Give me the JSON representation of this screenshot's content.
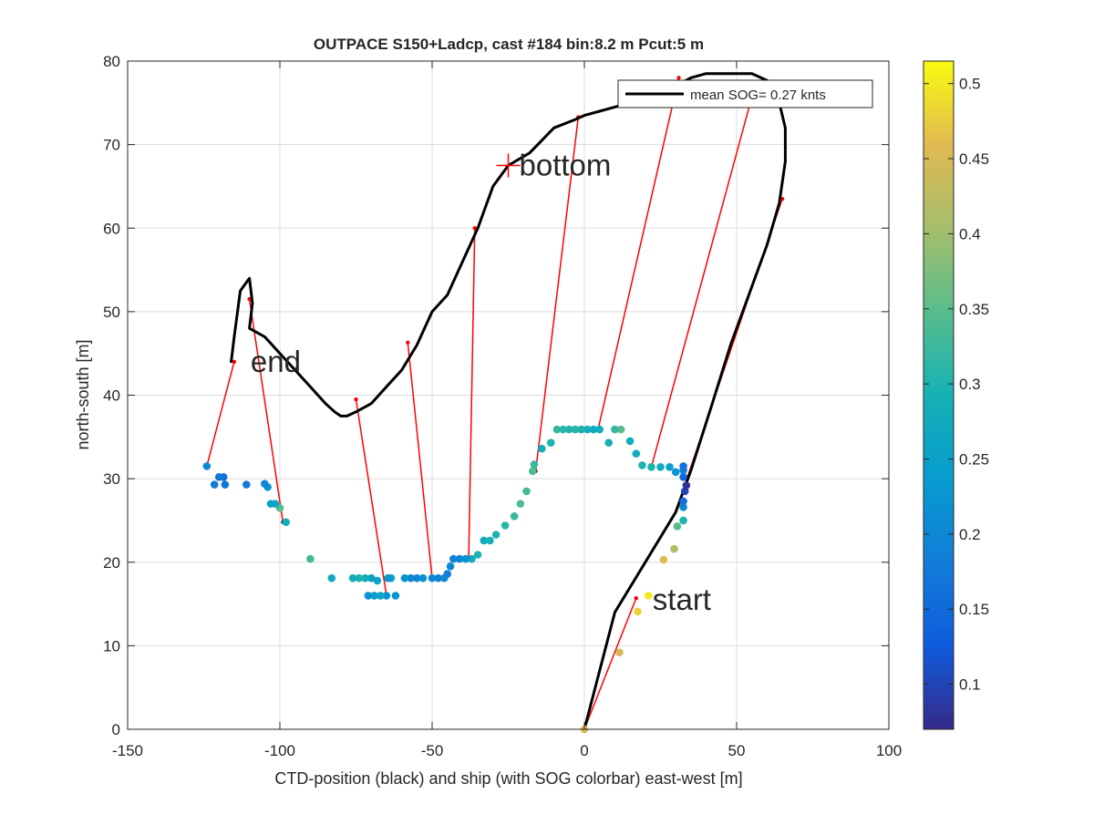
{
  "chart_data": {
    "type": "scatter",
    "title": "OUTPACE S150+Ladcp, cast #184 bin:8.2 m  Pcut:5 m",
    "xlabel": "CTD-position (black) and ship (with SOG colorbar) east-west [m]",
    "ylabel": "north-south [m]",
    "xlim": [
      -150,
      100
    ],
    "ylim": [
      0,
      80
    ],
    "xticks": [
      -150,
      -100,
      -50,
      0,
      50,
      100
    ],
    "yticks": [
      0,
      10,
      20,
      30,
      40,
      50,
      60,
      70,
      80
    ],
    "grid": true,
    "legend": {
      "location": "top-right",
      "label": "mean SOG=  0.27 knts"
    },
    "annotations": [
      {
        "text": "bottom",
        "x": -25,
        "y": 67.5,
        "marker": "+"
      },
      {
        "text": "end",
        "x": -112,
        "y": 44
      },
      {
        "text": "start",
        "x": 20,
        "y": 15.5
      }
    ],
    "colorbar": {
      "range": [
        0.07,
        0.515
      ],
      "ticks": [
        0.1,
        0.15,
        0.2,
        0.25,
        0.3,
        0.35,
        0.4,
        0.45,
        0.5
      ],
      "colormap": "parula"
    },
    "ctd_track": {
      "color": "#000000",
      "x": [
        0,
        10,
        20,
        30,
        35,
        42,
        48,
        55,
        60,
        64,
        66,
        66,
        64,
        63,
        61,
        58,
        55,
        50,
        45,
        40,
        35,
        30,
        25,
        20,
        15,
        10,
        5,
        0,
        -3,
        -10,
        -18,
        -25,
        -30,
        -33,
        -35,
        -40,
        -45,
        -50,
        -55,
        -60,
        -65,
        -70,
        -75,
        -78,
        -80,
        -82,
        -85,
        -90,
        -95,
        -100,
        -105,
        -110,
        -109,
        -110,
        -113,
        -115,
        -116
      ],
      "y": [
        0,
        14,
        20,
        26,
        31,
        39,
        46,
        53,
        58,
        63,
        68,
        72,
        75,
        76,
        77.5,
        78,
        78.5,
        78.5,
        78.5,
        78.5,
        78,
        77,
        76,
        75.5,
        75,
        74.5,
        74,
        73.5,
        73,
        72,
        69,
        67.5,
        65,
        62,
        60,
        56,
        52,
        50,
        46,
        43,
        41,
        39,
        38,
        37.5,
        37.5,
        38,
        39,
        41,
        43,
        45,
        47,
        48,
        51,
        54,
        52.5,
        47,
        44
      ]
    },
    "ship_points": [
      {
        "x": 0,
        "y": 0,
        "sog": 0.45
      },
      {
        "x": 11.5,
        "y": 9.2,
        "sog": 0.45
      },
      {
        "x": 17.5,
        "y": 14.1,
        "sog": 0.48
      },
      {
        "x": 21,
        "y": 16,
        "sog": 0.5
      },
      {
        "x": 26,
        "y": 20.3,
        "sog": 0.46
      },
      {
        "x": 29.5,
        "y": 21.6,
        "sog": 0.42
      },
      {
        "x": 30.5,
        "y": 24.3,
        "sog": 0.35
      },
      {
        "x": 32.5,
        "y": 25,
        "sog": 0.3
      },
      {
        "x": 32.5,
        "y": 26.6,
        "sog": 0.2
      },
      {
        "x": 32.5,
        "y": 27.3,
        "sog": 0.16
      },
      {
        "x": 33,
        "y": 28.5,
        "sog": 0.1
      },
      {
        "x": 33.5,
        "y": 29.2,
        "sog": 0.08
      },
      {
        "x": 32.5,
        "y": 30.2,
        "sog": 0.15
      },
      {
        "x": 32.5,
        "y": 31,
        "sog": 0.18
      },
      {
        "x": 32.5,
        "y": 31.5,
        "sog": 0.16
      },
      {
        "x": 30,
        "y": 30.8,
        "sog": 0.22
      },
      {
        "x": 28,
        "y": 31.4,
        "sog": 0.25
      },
      {
        "x": 25,
        "y": 31.4,
        "sog": 0.28
      },
      {
        "x": 22,
        "y": 31.4,
        "sog": 0.3
      },
      {
        "x": 19,
        "y": 31.6,
        "sog": 0.3
      },
      {
        "x": 17,
        "y": 33,
        "sog": 0.28
      },
      {
        "x": 15,
        "y": 34.5,
        "sog": 0.28
      },
      {
        "x": 12,
        "y": 35.9,
        "sog": 0.35
      },
      {
        "x": 10,
        "y": 35.9,
        "sog": 0.32
      },
      {
        "x": 8,
        "y": 34.3,
        "sog": 0.29
      },
      {
        "x": 5,
        "y": 35.9,
        "sog": 0.28
      },
      {
        "x": 3,
        "y": 35.9,
        "sog": 0.27
      },
      {
        "x": 1,
        "y": 35.9,
        "sog": 0.28
      },
      {
        "x": -1,
        "y": 35.9,
        "sog": 0.3
      },
      {
        "x": -3,
        "y": 35.9,
        "sog": 0.31
      },
      {
        "x": -5,
        "y": 35.9,
        "sog": 0.3
      },
      {
        "x": -7,
        "y": 35.9,
        "sog": 0.31
      },
      {
        "x": -9,
        "y": 35.9,
        "sog": 0.32
      },
      {
        "x": -11,
        "y": 34.3,
        "sog": 0.3
      },
      {
        "x": -14,
        "y": 33.6,
        "sog": 0.28
      },
      {
        "x": -16.5,
        "y": 31.7,
        "sog": 0.32
      },
      {
        "x": -17,
        "y": 30.9,
        "sog": 0.34
      },
      {
        "x": -19,
        "y": 28.5,
        "sog": 0.33
      },
      {
        "x": -21,
        "y": 27,
        "sog": 0.34
      },
      {
        "x": -23,
        "y": 25.5,
        "sog": 0.32
      },
      {
        "x": -26,
        "y": 24.4,
        "sog": 0.31
      },
      {
        "x": -29,
        "y": 23.3,
        "sog": 0.3
      },
      {
        "x": -31,
        "y": 22.6,
        "sog": 0.29
      },
      {
        "x": -33,
        "y": 22.6,
        "sog": 0.28
      },
      {
        "x": -35,
        "y": 20.9,
        "sog": 0.3
      },
      {
        "x": -37,
        "y": 20.4,
        "sog": 0.28
      },
      {
        "x": -39,
        "y": 20.4,
        "sog": 0.22
      },
      {
        "x": -41,
        "y": 20.4,
        "sog": 0.2
      },
      {
        "x": -43,
        "y": 20.4,
        "sog": 0.19
      },
      {
        "x": -44,
        "y": 19.5,
        "sog": 0.2
      },
      {
        "x": -45,
        "y": 18.6,
        "sog": 0.18
      },
      {
        "x": -46,
        "y": 18.1,
        "sog": 0.2
      },
      {
        "x": -48,
        "y": 18.1,
        "sog": 0.19
      },
      {
        "x": -50,
        "y": 18.1,
        "sog": 0.2
      },
      {
        "x": -53,
        "y": 18.1,
        "sog": 0.22
      },
      {
        "x": -55,
        "y": 18.1,
        "sog": 0.2
      },
      {
        "x": -57,
        "y": 18.1,
        "sog": 0.2
      },
      {
        "x": -59,
        "y": 18.1,
        "sog": 0.22
      },
      {
        "x": -62,
        "y": 16,
        "sog": 0.22
      },
      {
        "x": -63.5,
        "y": 18.1,
        "sog": 0.25
      },
      {
        "x": -64.5,
        "y": 18.1,
        "sog": 0.23
      },
      {
        "x": -65,
        "y": 16,
        "sog": 0.22
      },
      {
        "x": -67,
        "y": 16,
        "sog": 0.26
      },
      {
        "x": -69,
        "y": 16,
        "sog": 0.24
      },
      {
        "x": -71,
        "y": 16,
        "sog": 0.22
      },
      {
        "x": -68,
        "y": 17.8,
        "sog": 0.26
      },
      {
        "x": -70,
        "y": 18.1,
        "sog": 0.25
      },
      {
        "x": -72,
        "y": 18.1,
        "sog": 0.28
      },
      {
        "x": -74,
        "y": 18.1,
        "sog": 0.3
      },
      {
        "x": -76,
        "y": 18.1,
        "sog": 0.28
      },
      {
        "x": -83,
        "y": 18.1,
        "sog": 0.27
      },
      {
        "x": -90,
        "y": 20.4,
        "sog": 0.33
      },
      {
        "x": -98,
        "y": 24.8,
        "sog": 0.28
      },
      {
        "x": -100,
        "y": 26.5,
        "sog": 0.35
      },
      {
        "x": -101.5,
        "y": 27,
        "sog": 0.27
      },
      {
        "x": -103,
        "y": 27,
        "sog": 0.25
      },
      {
        "x": -104,
        "y": 29,
        "sog": 0.22
      },
      {
        "x": -105,
        "y": 29.4,
        "sog": 0.2
      },
      {
        "x": -111,
        "y": 29.3,
        "sog": 0.18
      },
      {
        "x": -118,
        "y": 29.3,
        "sog": 0.17
      },
      {
        "x": -118.5,
        "y": 30.2,
        "sog": 0.16
      },
      {
        "x": -120,
        "y": 30.2,
        "sog": 0.17
      },
      {
        "x": -121.5,
        "y": 29.3,
        "sog": 0.18
      },
      {
        "x": -124,
        "y": 31.5,
        "sog": 0.2
      }
    ],
    "connectors": [
      {
        "from": [
          0,
          0
        ],
        "to": [
          17,
          15.7
        ]
      },
      {
        "from": [
          -124,
          31.5
        ],
        "to": [
          -115,
          44
        ]
      },
      {
        "from": [
          -99,
          24.8
        ],
        "to": [
          -110,
          51.5
        ]
      },
      {
        "from": [
          -65,
          16
        ],
        "to": [
          -75,
          39.5
        ]
      },
      {
        "from": [
          -50,
          18.1
        ],
        "to": [
          -58,
          46.3
        ]
      },
      {
        "from": [
          -38,
          20.4
        ],
        "to": [
          -36,
          60
        ]
      },
      {
        "from": [
          -16,
          30.9
        ],
        "to": [
          -2,
          73.3
        ]
      },
      {
        "from": [
          4.5,
          35.9
        ],
        "to": [
          31,
          78
        ]
      },
      {
        "from": [
          22,
          31.4
        ],
        "to": [
          55,
          75.7
        ]
      },
      {
        "from": [
          33,
          29.3
        ],
        "to": [
          65,
          63.5
        ]
      }
    ]
  }
}
